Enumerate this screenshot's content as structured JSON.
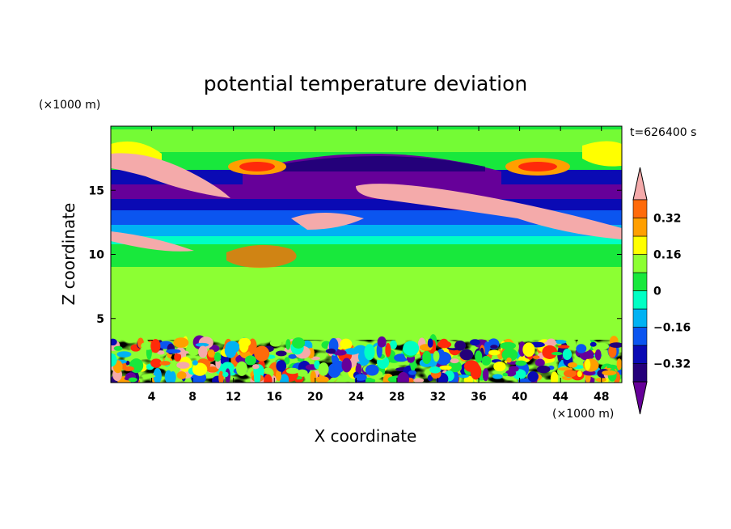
{
  "chart_data": {
    "type": "heatmap",
    "title": "potential temperature deviation",
    "xlabel": "X coordinate",
    "ylabel": "Z coordinate",
    "x_unit": "(×1000 m)",
    "y_unit": "(×1000 m)",
    "time_label": "t=626400 s",
    "xlim": [
      0,
      50
    ],
    "ylim": [
      0,
      20
    ],
    "x_ticks": [
      "4",
      "8",
      "12",
      "16",
      "20",
      "24",
      "28",
      "32",
      "36",
      "40",
      "44",
      "48"
    ],
    "y_ticks": [
      "5",
      "10",
      "15"
    ],
    "x_tick_values": [
      4,
      8,
      12,
      16,
      20,
      24,
      28,
      32,
      36,
      40,
      44,
      48
    ],
    "y_tick_values": [
      5,
      10,
      15
    ],
    "colorbar": {
      "levels": [
        -0.48,
        -0.4,
        -0.32,
        -0.24,
        -0.16,
        -0.08,
        0,
        0.08,
        0.16,
        0.24,
        0.32,
        0.4,
        0.48
      ],
      "tick_values": [
        0.32,
        0.16,
        0,
        -0.16,
        -0.32
      ],
      "tick_labels": [
        "0.32",
        "0.16",
        "0",
        "−0.16",
        "−0.32"
      ],
      "colors_low_to_high": [
        "#660099",
        "#24007a",
        "#0a0ab4",
        "#0b55f0",
        "#00b2f3",
        "#00ffc4",
        "#18e83c",
        "#8cff33",
        "#ffff00",
        "#ff9f00",
        "#ff6a0a",
        "#ff2a0a",
        "#f4aaaa"
      ],
      "extend": "both"
    },
    "field_description": {
      "upper_band_range_km": [
        12,
        20
      ],
      "lower_turbulent_layer_km": [
        0,
        3.5
      ]
    }
  }
}
